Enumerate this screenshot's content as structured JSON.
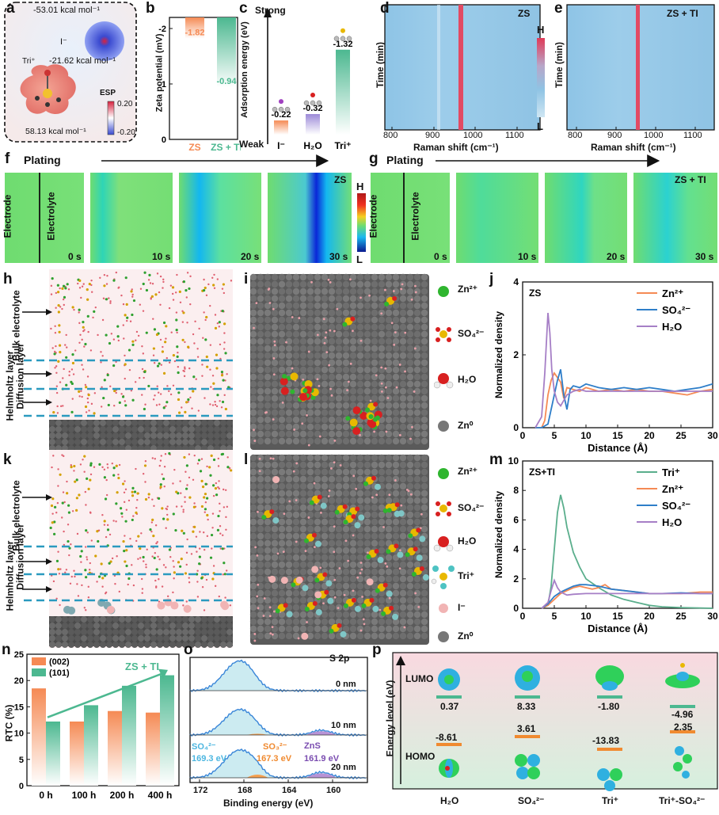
{
  "panel_letters": [
    "a",
    "b",
    "c",
    "d",
    "e",
    "f",
    "g",
    "h",
    "i",
    "j",
    "k",
    "l",
    "m",
    "n",
    "o",
    "p"
  ],
  "a": {
    "iodide_energy": "-53.01 kcal mol⁻¹",
    "iodide_label": "I⁻",
    "tri_label": "Tri⁺",
    "tri_energy_top": "-21.62 kcal mol⁻¹",
    "tri_energy_bottom": "58.13 kcal mol⁻¹",
    "esp_title": "ESP",
    "esp_max": "0.20",
    "esp_min": "-0.20"
  },
  "b": {
    "ylabel": "Zeta potential  (mV)",
    "ticks": [
      "-2",
      "-1",
      "0"
    ],
    "value_labels": [
      "-1.82",
      "-0.94"
    ],
    "categories": [
      "ZS",
      "ZS + TI"
    ]
  },
  "c": {
    "ylabel": "Adsorption energy (eV)",
    "strong": "Strong",
    "weak": "Weak",
    "value_labels": [
      "-0.22",
      "-0.32",
      "-1.32"
    ],
    "categories": [
      "I⁻",
      "H₂O",
      "Tri⁺"
    ]
  },
  "d": {
    "title": "ZS",
    "ylabel": "Time (min)",
    "xlabel": "Raman shift (cm⁻¹)",
    "ticks": [
      "800",
      "900",
      "1000",
      "1100"
    ]
  },
  "e": {
    "title": "ZS + TI",
    "ylabel": "Time (min)",
    "xlabel": "Raman shift (cm⁻¹)",
    "ticks": [
      "800",
      "900",
      "1000",
      "1100"
    ]
  },
  "colorbar_de": {
    "high": "H",
    "low": "L"
  },
  "f": {
    "plating": "Plating",
    "title": "ZS",
    "electrode": "Electrode",
    "electrolyte": "Electrolyte",
    "times": [
      "0 s",
      "10 s",
      "20 s",
      "30 s"
    ]
  },
  "g": {
    "plating": "Plating",
    "title": "ZS + TI",
    "electrode": "Electrode",
    "electrolyte": "Electrolyte",
    "times": [
      "0 s",
      "10 s",
      "20 s",
      "30 s"
    ]
  },
  "colorbar_fg": {
    "high": "H",
    "low": "L"
  },
  "h": {
    "bulk": "Bulk electrolyte",
    "diffusion": "Diffusion layer",
    "helmholtz": "Helmholtz layer"
  },
  "k": {
    "bulk": "Bulk electrolyte",
    "diffusion": "Diffusion layer",
    "helmholtz": "Helmholtz layer"
  },
  "legend_i": [
    "Zn²⁺",
    "SO₄²⁻",
    "H₂O",
    "Zn⁰"
  ],
  "legend_l": [
    "Zn²⁺",
    "SO₄²⁻",
    "H₂O",
    "Tri⁺",
    "I⁻",
    "Zn⁰"
  ],
  "n_labels": {
    "ylabel": "RTC (%)",
    "arrow": "ZS + TI"
  },
  "o_labels": {
    "title": "S 2p",
    "xlabel": "Binding energy (eV)",
    "depths": [
      "0 nm",
      "10 nm",
      "20 nm"
    ],
    "so4": "SO₄²⁻",
    "so4_ev": "169.3 eV",
    "so3": "SO₃²⁻",
    "so3_ev": "167.3 eV",
    "zns": "ZnS",
    "zns_ev": "161.9 eV",
    "ticks": [
      "172",
      "168",
      "164",
      "160"
    ]
  },
  "p": {
    "ylabel": "Energy level (eV)",
    "lumo": "LUMO",
    "homo": "HOMO",
    "lumo_values": [
      "0.37",
      "8.33",
      "-1.80",
      "-4.96"
    ],
    "homo_values": [
      "-8.61",
      "3.61",
      "-13.83",
      "2.35"
    ],
    "species": [
      "H₂O",
      "SO₄²⁻",
      "Tri⁺",
      "Tri⁺-SO₄²⁻"
    ]
  },
  "colors": {
    "zs": "#f58a54",
    "ti": "#4cb890",
    "so4": "#2e7ec9",
    "h2o": "#a67fc6",
    "tri": "#5aae8c"
  },
  "chart_data": [
    {
      "type": "bar",
      "panel": "b",
      "title": "",
      "ylabel": "Zeta potential (mV)",
      "categories": [
        "ZS",
        "ZS + TI"
      ],
      "values": [
        -1.82,
        -0.94
      ],
      "ylim": [
        -2.2,
        0
      ]
    },
    {
      "type": "bar",
      "panel": "c",
      "title": "",
      "ylabel": "Adsorption energy (eV)",
      "categories": [
        "I⁻",
        "H₂O",
        "Tri⁺"
      ],
      "values": [
        -0.22,
        -0.32,
        -1.32
      ],
      "ylim": [
        -1.6,
        0
      ]
    },
    {
      "type": "line",
      "panel": "j",
      "title": "ZS",
      "xlabel": "Distance (Å)",
      "ylabel": "Normalized density",
      "xlim": [
        0,
        30
      ],
      "ylim": [
        0,
        4
      ],
      "xticks": [
        0,
        5,
        10,
        15,
        20,
        25,
        30
      ],
      "yticks": [
        0,
        2,
        4
      ],
      "series": [
        {
          "name": "Zn²⁺",
          "color": "#f58a54",
          "x": [
            2,
            3,
            3.5,
            4,
            4.5,
            5,
            6,
            6.5,
            7,
            8,
            9,
            10,
            12,
            14,
            16,
            18,
            20,
            22,
            24,
            26,
            28,
            30
          ],
          "y": [
            0,
            0,
            0.2,
            0.9,
            1.3,
            1.5,
            1.25,
            0.8,
            1.1,
            1.05,
            1.0,
            1.1,
            1.0,
            1.05,
            1.0,
            1.05,
            1.0,
            1.0,
            0.95,
            0.9,
            1.0,
            1.05
          ]
        },
        {
          "name": "SO₄²⁻",
          "color": "#2e7ec9",
          "x": [
            2,
            3,
            4,
            4.5,
            5,
            5.5,
            6,
            6.5,
            7,
            7.5,
            8,
            9,
            10,
            12,
            14,
            16,
            18,
            20,
            22,
            24,
            26,
            28,
            30
          ],
          "y": [
            0,
            0,
            0.1,
            0.5,
            0.9,
            1.3,
            1.6,
            0.9,
            0.5,
            1.05,
            1.15,
            1.1,
            1.2,
            1.1,
            1.05,
            1.1,
            1.05,
            1.1,
            1.05,
            1.0,
            1.05,
            1.1,
            1.2
          ]
        },
        {
          "name": "H₂O",
          "color": "#a67fc6",
          "x": [
            2,
            3,
            3.5,
            4,
            4.3,
            4.6,
            5,
            5.5,
            6,
            7,
            8,
            9,
            10,
            12,
            15,
            20,
            25,
            30
          ],
          "y": [
            0,
            0.3,
            1.5,
            3.15,
            2.6,
            1.6,
            1.0,
            0.7,
            0.6,
            0.9,
            1.0,
            1.05,
            1.0,
            1.0,
            1.0,
            1.0,
            1.0,
            1.0
          ]
        }
      ]
    },
    {
      "type": "line",
      "panel": "m",
      "title": "ZS+TI",
      "xlabel": "Distance (Å)",
      "ylabel": "Normalized density",
      "xlim": [
        0,
        30
      ],
      "ylim": [
        0,
        10
      ],
      "xticks": [
        0,
        5,
        10,
        15,
        20,
        25,
        30
      ],
      "yticks": [
        0,
        2,
        4,
        6,
        8,
        10
      ],
      "series": [
        {
          "name": "Tri⁺",
          "color": "#5aae8c",
          "x": [
            3,
            4,
            4.5,
            5,
            5.5,
            6,
            6.5,
            7,
            8,
            9,
            10,
            12,
            14,
            16,
            18,
            20,
            22,
            25,
            30
          ],
          "y": [
            0,
            0.2,
            1.5,
            4.0,
            6.5,
            7.7,
            6.8,
            5.5,
            3.8,
            2.8,
            2.0,
            1.4,
            0.9,
            0.6,
            0.4,
            0.2,
            0.1,
            0.05,
            0.0
          ]
        },
        {
          "name": "Zn²⁺",
          "color": "#f58a54",
          "x": [
            3,
            4,
            5,
            6,
            7,
            8,
            9,
            10,
            11,
            12,
            13,
            14,
            16,
            18,
            20,
            22,
            25,
            28,
            30
          ],
          "y": [
            0,
            0.2,
            0.6,
            1.0,
            1.2,
            1.4,
            1.5,
            1.4,
            1.3,
            1.4,
            1.6,
            1.3,
            1.2,
            1.1,
            1.0,
            1.0,
            1.0,
            1.1,
            1.1
          ]
        },
        {
          "name": "SO₄²⁻",
          "color": "#2e7ec9",
          "x": [
            3,
            4,
            5,
            6,
            7,
            8,
            9,
            10,
            12,
            14,
            16,
            18,
            20,
            22,
            25,
            28,
            30
          ],
          "y": [
            0,
            0.3,
            0.8,
            1.1,
            1.3,
            1.5,
            1.6,
            1.6,
            1.5,
            1.3,
            1.2,
            1.1,
            1.0,
            1.0,
            1.05,
            1.0,
            1.0
          ]
        },
        {
          "name": "H₂O",
          "color": "#a67fc6",
          "x": [
            3,
            4,
            4.5,
            5,
            5.5,
            6,
            7,
            8,
            10,
            12,
            15,
            20,
            25,
            30
          ],
          "y": [
            0,
            0.4,
            1.2,
            1.9,
            1.4,
            1.1,
            0.9,
            0.95,
            1.0,
            1.0,
            1.0,
            1.0,
            1.0,
            1.0
          ]
        }
      ]
    },
    {
      "type": "bar",
      "panel": "n",
      "title": "",
      "ylabel": "RTC (%)",
      "categories": [
        "0 h",
        "100 h",
        "200 h",
        "400 h"
      ],
      "ylim": [
        0,
        25
      ],
      "yticks": [
        0,
        5,
        10,
        15,
        20,
        25
      ],
      "series": [
        {
          "name": "(002)",
          "color": "#f58a54",
          "values": [
            18.5,
            12.2,
            14.2,
            13.9
          ]
        },
        {
          "name": "(101)",
          "color": "#4cb890",
          "values": [
            12.2,
            15.3,
            19.0,
            21.0
          ]
        }
      ]
    }
  ]
}
